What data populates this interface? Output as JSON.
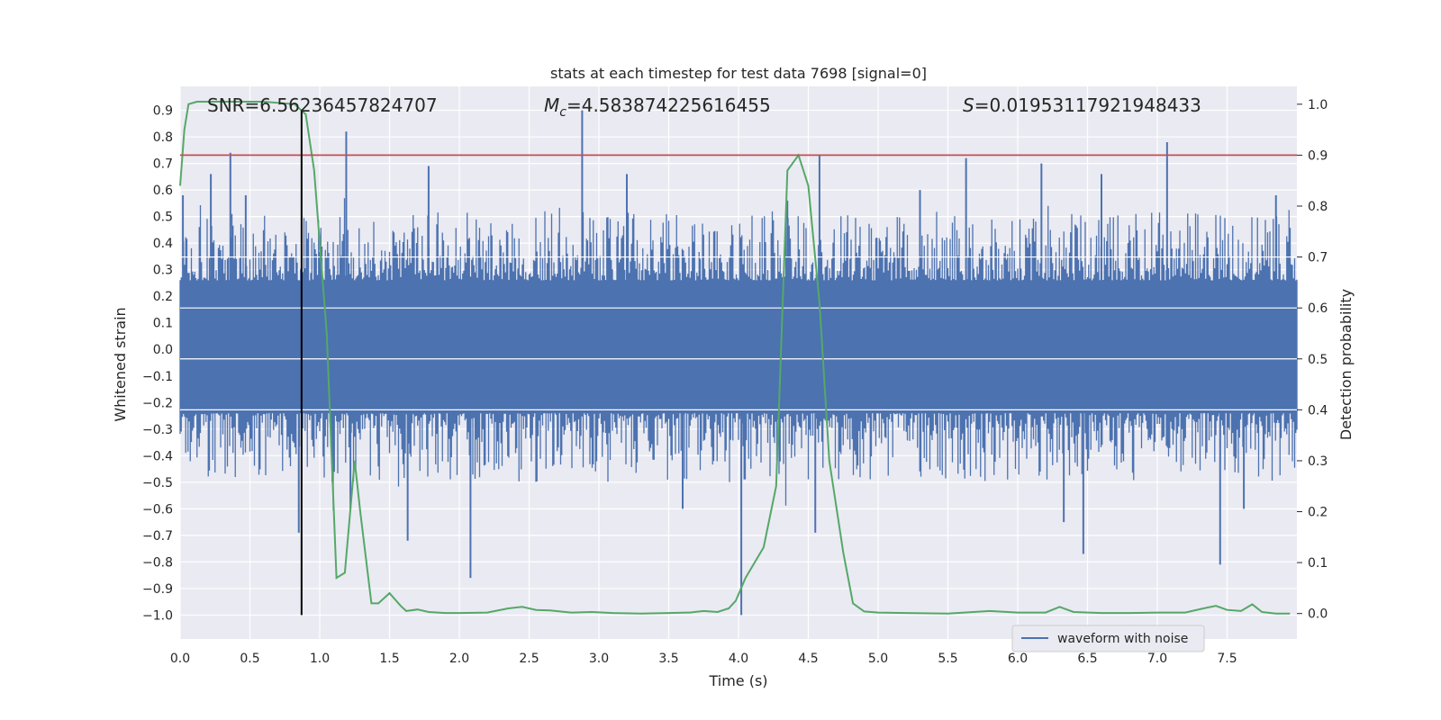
{
  "chart_data": {
    "type": "line",
    "title": "stats at each timestep for test data 7698 [signal=0]",
    "xlabel": "Time (s)",
    "ylabel_left": "Whitened strain",
    "ylabel_right": "Detection probability",
    "xlim": [
      0.0,
      8.0
    ],
    "ylim_left": [
      -1.09,
      0.99
    ],
    "ylim_right": [
      -0.05,
      1.035
    ],
    "x_ticks": [
      0.0,
      0.5,
      1.0,
      1.5,
      2.0,
      2.5,
      3.0,
      3.5,
      4.0,
      4.5,
      5.0,
      5.5,
      6.0,
      6.5,
      7.0,
      7.5
    ],
    "x_tick_labels": [
      "0.0",
      "0.5",
      "1.0",
      "1.5",
      "2.0",
      "2.5",
      "3.0",
      "3.5",
      "4.0",
      "4.5",
      "5.0",
      "5.5",
      "6.0",
      "6.5",
      "7.0",
      "7.5"
    ],
    "y_left_ticks": [
      -1.0,
      -0.9,
      -0.8,
      -0.7,
      -0.6,
      -0.5,
      -0.4,
      -0.3,
      -0.2,
      -0.1,
      0.0,
      0.1,
      0.2,
      0.3,
      0.4,
      0.5,
      0.6,
      0.7,
      0.8,
      0.9
    ],
    "y_left_tick_labels": [
      "−1.0",
      "−0.9",
      "−0.8",
      "−0.7",
      "−0.6",
      "−0.5",
      "−0.4",
      "−0.3",
      "−0.2",
      "−0.1",
      "0.0",
      "0.1",
      "0.2",
      "0.3",
      "0.4",
      "0.5",
      "0.6",
      "0.7",
      "0.8",
      "0.9"
    ],
    "y_right_ticks": [
      0.0,
      0.1,
      0.2,
      0.3,
      0.4,
      0.5,
      0.6,
      0.7,
      0.8,
      0.9,
      1.0
    ],
    "y_right_tick_labels": [
      "0.0",
      "0.1",
      "0.2",
      "0.3",
      "0.4",
      "0.5",
      "0.6",
      "0.7",
      "0.8",
      "0.9",
      "1.0"
    ],
    "annotations": {
      "snr": "SNR=6.56236457824707",
      "mc_symbol": "M",
      "mc_sub": "c",
      "mc_value": "=4.583874225616455",
      "s_symbol": "S",
      "s_value": "=0.01953117921948433"
    },
    "legend": {
      "label": "waveform with noise",
      "loc": "lower-right"
    },
    "threshold_line": {
      "axis": "right",
      "y": 0.9,
      "color": "#c44e52"
    },
    "vertical_marker": {
      "x": 0.87,
      "y_from": -1.0,
      "y_to": 0.9,
      "color": "#000000"
    },
    "series": [
      {
        "name": "waveform with noise",
        "axis": "left",
        "color": "#4c72b0",
        "kind": "noise-envelope",
        "core_range": [
          -0.24,
          0.26
        ],
        "typical_peak": 0.4,
        "max": 0.9,
        "min": -1.0,
        "spikes": [
          {
            "x": 0.02,
            "y": 0.58
          },
          {
            "x": 0.22,
            "y": 0.66
          },
          {
            "x": 0.36,
            "y": 0.74
          },
          {
            "x": 0.47,
            "y": 0.58
          },
          {
            "x": 0.85,
            "y": -0.69
          },
          {
            "x": 1.19,
            "y": 0.82
          },
          {
            "x": 1.22,
            "y": -0.6
          },
          {
            "x": 1.63,
            "y": -0.72
          },
          {
            "x": 1.78,
            "y": 0.69
          },
          {
            "x": 2.08,
            "y": -0.86
          },
          {
            "x": 2.88,
            "y": 0.9
          },
          {
            "x": 3.2,
            "y": 0.66
          },
          {
            "x": 3.6,
            "y": -0.6
          },
          {
            "x": 4.02,
            "y": -1.0
          },
          {
            "x": 4.35,
            "y": 0.56
          },
          {
            "x": 4.58,
            "y": 0.73
          },
          {
            "x": 4.55,
            "y": -0.69
          },
          {
            "x": 5.3,
            "y": 0.6
          },
          {
            "x": 5.63,
            "y": 0.72
          },
          {
            "x": 6.17,
            "y": 0.7
          },
          {
            "x": 6.33,
            "y": -0.65
          },
          {
            "x": 6.47,
            "y": -0.77
          },
          {
            "x": 6.6,
            "y": 0.66
          },
          {
            "x": 7.07,
            "y": 0.78
          },
          {
            "x": 7.45,
            "y": -0.81
          },
          {
            "x": 7.62,
            "y": -0.6
          },
          {
            "x": 7.85,
            "y": 0.58
          }
        ]
      },
      {
        "name": "detection probability",
        "axis": "right",
        "color": "#55a868",
        "x": [
          0.0,
          0.03,
          0.06,
          0.12,
          0.3,
          0.6,
          0.82,
          0.9,
          0.96,
          1.05,
          1.12,
          1.18,
          1.25,
          1.29,
          1.37,
          1.42,
          1.5,
          1.58,
          1.62,
          1.7,
          1.78,
          1.9,
          2.0,
          2.2,
          2.35,
          2.45,
          2.55,
          2.65,
          2.8,
          2.95,
          3.1,
          3.3,
          3.5,
          3.65,
          3.75,
          3.85,
          3.93,
          3.98,
          4.05,
          4.18,
          4.27,
          4.35,
          4.43,
          4.5,
          4.58,
          4.65,
          4.75,
          4.82,
          4.9,
          5.0,
          5.2,
          5.5,
          5.8,
          6.0,
          6.2,
          6.3,
          6.4,
          6.6,
          6.8,
          7.0,
          7.2,
          7.33,
          7.42,
          7.5,
          7.6,
          7.68,
          7.75,
          7.85,
          7.95
        ],
        "y": [
          0.84,
          0.95,
          1.0,
          1.005,
          1.005,
          1.005,
          1.0,
          0.98,
          0.87,
          0.55,
          0.07,
          0.08,
          0.3,
          0.2,
          0.02,
          0.02,
          0.04,
          0.015,
          0.005,
          0.008,
          0.003,
          0.001,
          0.001,
          0.002,
          0.01,
          0.013,
          0.007,
          0.006,
          0.002,
          0.003,
          0.001,
          0.0,
          0.001,
          0.002,
          0.005,
          0.003,
          0.01,
          0.025,
          0.07,
          0.13,
          0.25,
          0.87,
          0.9,
          0.84,
          0.61,
          0.3,
          0.12,
          0.02,
          0.004,
          0.002,
          0.001,
          0.0,
          0.005,
          0.002,
          0.002,
          0.013,
          0.003,
          0.001,
          0.001,
          0.002,
          0.002,
          0.01,
          0.015,
          0.007,
          0.005,
          0.018,
          0.003,
          0.0,
          0.0
        ]
      }
    ]
  }
}
